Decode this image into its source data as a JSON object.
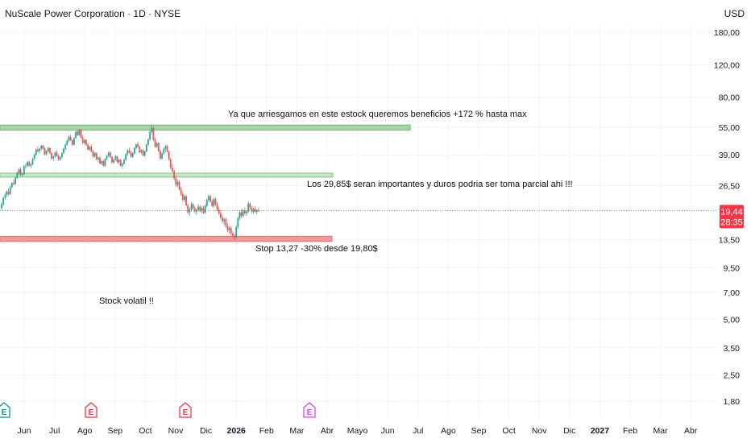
{
  "header": {
    "title": "NuScale Power Corporation · 1D · NYSE",
    "currency": "USD"
  },
  "colors": {
    "up": "#26a69a",
    "down": "#ef5350",
    "resistance_zone": "#a5d6a7",
    "mid_zone": "#c8e6c9",
    "stop_zone": "#ef9a9a",
    "price_label": "#f23645",
    "earnings_up": "#089981",
    "earnings_down": "#f23645",
    "earnings_future": "#e040fb"
  },
  "price_label": {
    "value": "19,44",
    "countdown": "28:35"
  },
  "annotations": [
    {
      "text": "Ya que arriesgamos en este estock queremos beneficios +172 % hasta max"
    },
    {
      "text": "Los 29,85$ seran importantes y duros podria ser toma parcial ahi !!!"
    },
    {
      "text": "Stop 13,27 -30% desde 19,80$"
    },
    {
      "text": "Stock volatil !!"
    }
  ],
  "earnings_markers": [
    {
      "letter": "E",
      "kind": "up"
    },
    {
      "letter": "E",
      "kind": "down"
    },
    {
      "letter": "E",
      "kind": "down"
    },
    {
      "letter": "E",
      "kind": "future"
    }
  ],
  "chart_data": {
    "type": "candlestick",
    "y_scale": "log",
    "y_ticks": [
      "180,00",
      "120,00",
      "80,00",
      "55,00",
      "39,00",
      "26,50",
      "13,50",
      "9,50",
      "7,00",
      "5,00",
      "3,50",
      "2,50",
      "1,80"
    ],
    "x_ticks": [
      "Jun",
      "Jul",
      "Ago",
      "Sep",
      "Oct",
      "Nov",
      "Dic",
      "2026",
      "Feb",
      "Mar",
      "Abr",
      "Mayo",
      "Jun",
      "Jul",
      "Ago",
      "Sep",
      "Oct",
      "Nov",
      "Dic",
      "2027",
      "Feb",
      "Mar",
      "Abr"
    ],
    "zones": [
      {
        "name": "max target",
        "low": 53,
        "high": 56.5
      },
      {
        "name": "29,85 zone",
        "low": 29.5,
        "high": 31
      },
      {
        "name": "stop",
        "low": 13.2,
        "high": 14.1
      }
    ],
    "last_price": 19.44,
    "series": [
      {
        "values": [
          [
            20.0,
            21.6,
            19.6,
            21.0
          ],
          [
            21.0,
            23.0,
            20.6,
            22.8
          ],
          [
            22.8,
            24.2,
            22.2,
            23.6
          ],
          [
            23.6,
            25.0,
            23.0,
            24.6
          ],
          [
            24.6,
            25.6,
            23.4,
            23.9
          ],
          [
            23.9,
            26.6,
            23.5,
            26.0
          ],
          [
            26.0,
            27.8,
            25.6,
            27.4
          ],
          [
            27.4,
            28.6,
            26.6,
            27.0
          ],
          [
            27.0,
            29.8,
            26.8,
            29.2
          ],
          [
            29.2,
            31.6,
            28.8,
            31.0
          ],
          [
            31.0,
            33.0,
            30.2,
            32.4
          ],
          [
            32.4,
            33.4,
            29.8,
            30.4
          ],
          [
            30.4,
            31.2,
            29.4,
            30.6
          ],
          [
            30.6,
            34.2,
            30.2,
            33.8
          ],
          [
            33.8,
            35.0,
            32.8,
            34.0
          ],
          [
            34.0,
            36.2,
            33.4,
            35.6
          ],
          [
            35.6,
            36.2,
            33.6,
            34.0
          ],
          [
            34.0,
            35.2,
            33.0,
            34.6
          ],
          [
            34.6,
            37.6,
            34.2,
            37.0
          ],
          [
            37.0,
            39.6,
            36.6,
            39.0
          ],
          [
            39.0,
            42.2,
            38.4,
            41.6
          ],
          [
            41.6,
            43.4,
            40.2,
            40.8
          ],
          [
            40.8,
            42.4,
            39.6,
            42.0
          ],
          [
            42.0,
            44.2,
            41.2,
            43.6
          ],
          [
            43.6,
            44.2,
            41.6,
            42.2
          ],
          [
            42.2,
            43.0,
            38.6,
            39.2
          ],
          [
            39.2,
            41.4,
            38.6,
            40.8
          ],
          [
            40.8,
            43.0,
            40.2,
            42.4
          ],
          [
            42.4,
            42.8,
            39.2,
            39.8
          ],
          [
            39.8,
            40.4,
            36.6,
            37.2
          ],
          [
            37.2,
            38.6,
            36.2,
            38.2
          ],
          [
            38.2,
            40.6,
            37.6,
            40.0
          ],
          [
            40.0,
            41.2,
            38.0,
            38.4
          ],
          [
            38.4,
            39.2,
            36.2,
            36.8
          ],
          [
            36.8,
            38.4,
            36.2,
            37.8
          ],
          [
            37.8,
            40.2,
            37.4,
            39.8
          ],
          [
            39.8,
            42.6,
            39.2,
            42.0
          ],
          [
            42.0,
            45.0,
            41.4,
            44.2
          ],
          [
            44.2,
            47.2,
            43.6,
            46.6
          ],
          [
            46.6,
            49.4,
            45.6,
            48.8
          ],
          [
            48.8,
            50.2,
            46.2,
            46.8
          ],
          [
            46.8,
            47.4,
            43.6,
            44.2
          ],
          [
            44.2,
            48.6,
            43.8,
            48.0
          ],
          [
            48.0,
            52.6,
            47.6,
            52.0
          ],
          [
            52.0,
            53.4,
            49.2,
            49.8
          ],
          [
            49.8,
            53.8,
            49.2,
            53.2
          ],
          [
            53.2,
            54.0,
            47.6,
            48.2
          ],
          [
            48.2,
            49.6,
            44.6,
            45.2
          ],
          [
            45.2,
            47.4,
            44.2,
            46.8
          ],
          [
            46.8,
            47.6,
            43.6,
            44.2
          ],
          [
            44.2,
            45.2,
            41.2,
            41.6
          ],
          [
            41.6,
            43.6,
            40.8,
            43.0
          ],
          [
            43.0,
            44.4,
            40.2,
            40.6
          ],
          [
            40.6,
            41.4,
            37.6,
            38.2
          ],
          [
            38.2,
            40.4,
            37.6,
            39.8
          ],
          [
            39.8,
            40.2,
            36.4,
            36.8
          ],
          [
            36.8,
            38.2,
            35.6,
            37.6
          ],
          [
            37.6,
            38.2,
            34.6,
            35.0
          ],
          [
            35.0,
            36.6,
            34.2,
            36.0
          ],
          [
            36.0,
            36.6,
            33.6,
            34.0
          ],
          [
            34.0,
            37.4,
            33.6,
            37.0
          ],
          [
            37.0,
            38.8,
            36.4,
            38.4
          ],
          [
            38.4,
            40.6,
            37.8,
            40.0
          ],
          [
            40.0,
            40.8,
            37.4,
            37.8
          ],
          [
            37.8,
            38.4,
            35.0,
            35.4
          ],
          [
            35.4,
            37.2,
            34.8,
            36.8
          ],
          [
            36.8,
            38.8,
            36.2,
            38.2
          ],
          [
            38.2,
            38.6,
            35.2,
            35.6
          ],
          [
            35.6,
            37.0,
            34.6,
            36.6
          ],
          [
            36.6,
            37.0,
            33.6,
            34.0
          ],
          [
            34.0,
            35.2,
            32.8,
            34.8
          ],
          [
            34.8,
            37.2,
            34.4,
            36.6
          ],
          [
            36.6,
            39.8,
            36.0,
            39.2
          ],
          [
            39.2,
            41.8,
            38.6,
            41.2
          ],
          [
            41.2,
            42.6,
            39.6,
            40.0
          ],
          [
            40.0,
            41.0,
            37.6,
            38.0
          ],
          [
            38.0,
            40.2,
            37.4,
            39.6
          ],
          [
            39.6,
            43.0,
            39.2,
            42.4
          ],
          [
            42.4,
            45.0,
            41.6,
            44.4
          ],
          [
            44.4,
            45.8,
            42.6,
            43.0
          ],
          [
            43.0,
            43.6,
            39.8,
            40.2
          ],
          [
            40.2,
            41.8,
            39.4,
            41.2
          ],
          [
            41.2,
            42.0,
            38.2,
            38.6
          ],
          [
            38.6,
            41.2,
            38.0,
            40.6
          ],
          [
            40.6,
            44.8,
            40.2,
            44.2
          ],
          [
            44.2,
            47.8,
            43.6,
            47.2
          ],
          [
            47.2,
            52.6,
            46.6,
            51.8
          ],
          [
            51.8,
            56.8,
            50.4,
            54.6
          ],
          [
            54.6,
            55.2,
            46.2,
            47.0
          ],
          [
            47.0,
            48.4,
            42.6,
            43.2
          ],
          [
            43.2,
            45.6,
            42.2,
            45.0
          ],
          [
            45.0,
            45.8,
            40.2,
            40.8
          ],
          [
            40.8,
            41.8,
            36.6,
            37.2
          ],
          [
            37.2,
            40.2,
            36.6,
            39.6
          ],
          [
            39.6,
            42.6,
            39.0,
            42.0
          ],
          [
            42.0,
            44.0,
            40.4,
            43.4
          ],
          [
            43.4,
            44.2,
            40.2,
            40.6
          ],
          [
            40.6,
            41.2,
            36.2,
            36.8
          ],
          [
            36.8,
            37.6,
            32.6,
            33.2
          ],
          [
            33.2,
            34.8,
            31.2,
            31.8
          ],
          [
            31.8,
            32.4,
            28.4,
            29.0
          ],
          [
            29.0,
            30.2,
            26.2,
            26.8
          ],
          [
            26.8,
            28.6,
            26.2,
            27.8
          ],
          [
            27.8,
            28.4,
            25.0,
            25.4
          ],
          [
            25.4,
            26.2,
            23.4,
            23.8
          ],
          [
            23.8,
            24.6,
            21.8,
            22.2
          ],
          [
            22.2,
            23.8,
            21.6,
            23.2
          ],
          [
            23.2,
            23.6,
            20.4,
            20.8
          ],
          [
            20.8,
            21.2,
            18.6,
            19.0
          ],
          [
            19.0,
            20.2,
            18.2,
            19.6
          ],
          [
            19.6,
            21.6,
            19.2,
            21.0
          ],
          [
            21.0,
            21.4,
            19.6,
            20.0
          ],
          [
            20.0,
            20.6,
            18.8,
            19.2
          ],
          [
            19.2,
            20.0,
            18.4,
            19.6
          ],
          [
            19.6,
            21.0,
            19.2,
            20.4
          ],
          [
            20.4,
            20.8,
            19.0,
            19.4
          ],
          [
            19.4,
            20.4,
            18.8,
            20.0
          ],
          [
            20.0,
            20.6,
            18.6,
            18.9
          ],
          [
            18.9,
            21.0,
            18.6,
            20.6
          ],
          [
            20.6,
            22.6,
            20.2,
            22.2
          ],
          [
            22.2,
            23.8,
            21.6,
            23.2
          ],
          [
            23.2,
            23.6,
            21.4,
            21.8
          ],
          [
            21.8,
            22.4,
            20.2,
            20.6
          ],
          [
            20.6,
            22.8,
            20.2,
            22.4
          ],
          [
            22.4,
            22.8,
            20.6,
            21.0
          ],
          [
            21.0,
            21.6,
            19.2,
            19.6
          ],
          [
            19.6,
            20.4,
            18.4,
            18.8
          ],
          [
            18.8,
            19.6,
            17.4,
            17.8
          ],
          [
            17.8,
            18.4,
            16.6,
            17.0
          ],
          [
            17.0,
            17.8,
            16.2,
            17.4
          ],
          [
            17.4,
            17.8,
            15.6,
            16.0
          ],
          [
            16.0,
            16.6,
            14.8,
            15.2
          ],
          [
            15.2,
            16.0,
            14.6,
            15.6
          ],
          [
            15.6,
            16.0,
            14.2,
            14.6
          ],
          [
            14.6,
            15.0,
            13.8,
            14.2
          ],
          [
            14.2,
            14.6,
            13.3,
            13.9
          ],
          [
            13.9,
            16.2,
            13.6,
            15.8
          ],
          [
            15.8,
            18.0,
            15.4,
            17.6
          ],
          [
            17.6,
            19.4,
            17.2,
            19.0
          ],
          [
            19.0,
            19.8,
            17.8,
            18.2
          ],
          [
            18.2,
            19.8,
            17.8,
            19.4
          ],
          [
            19.4,
            20.2,
            18.4,
            18.8
          ],
          [
            18.8,
            19.6,
            18.2,
            19.2
          ],
          [
            19.2,
            21.8,
            18.8,
            21.2
          ],
          [
            21.2,
            21.6,
            19.6,
            20.0
          ],
          [
            20.0,
            20.6,
            18.8,
            19.2
          ],
          [
            19.2,
            20.2,
            18.6,
            19.8
          ],
          [
            19.8,
            20.6,
            18.9,
            19.1
          ],
          [
            19.1,
            19.8,
            18.6,
            19.5
          ],
          [
            19.5,
            20.2,
            19.0,
            19.44
          ]
        ]
      }
    ]
  }
}
